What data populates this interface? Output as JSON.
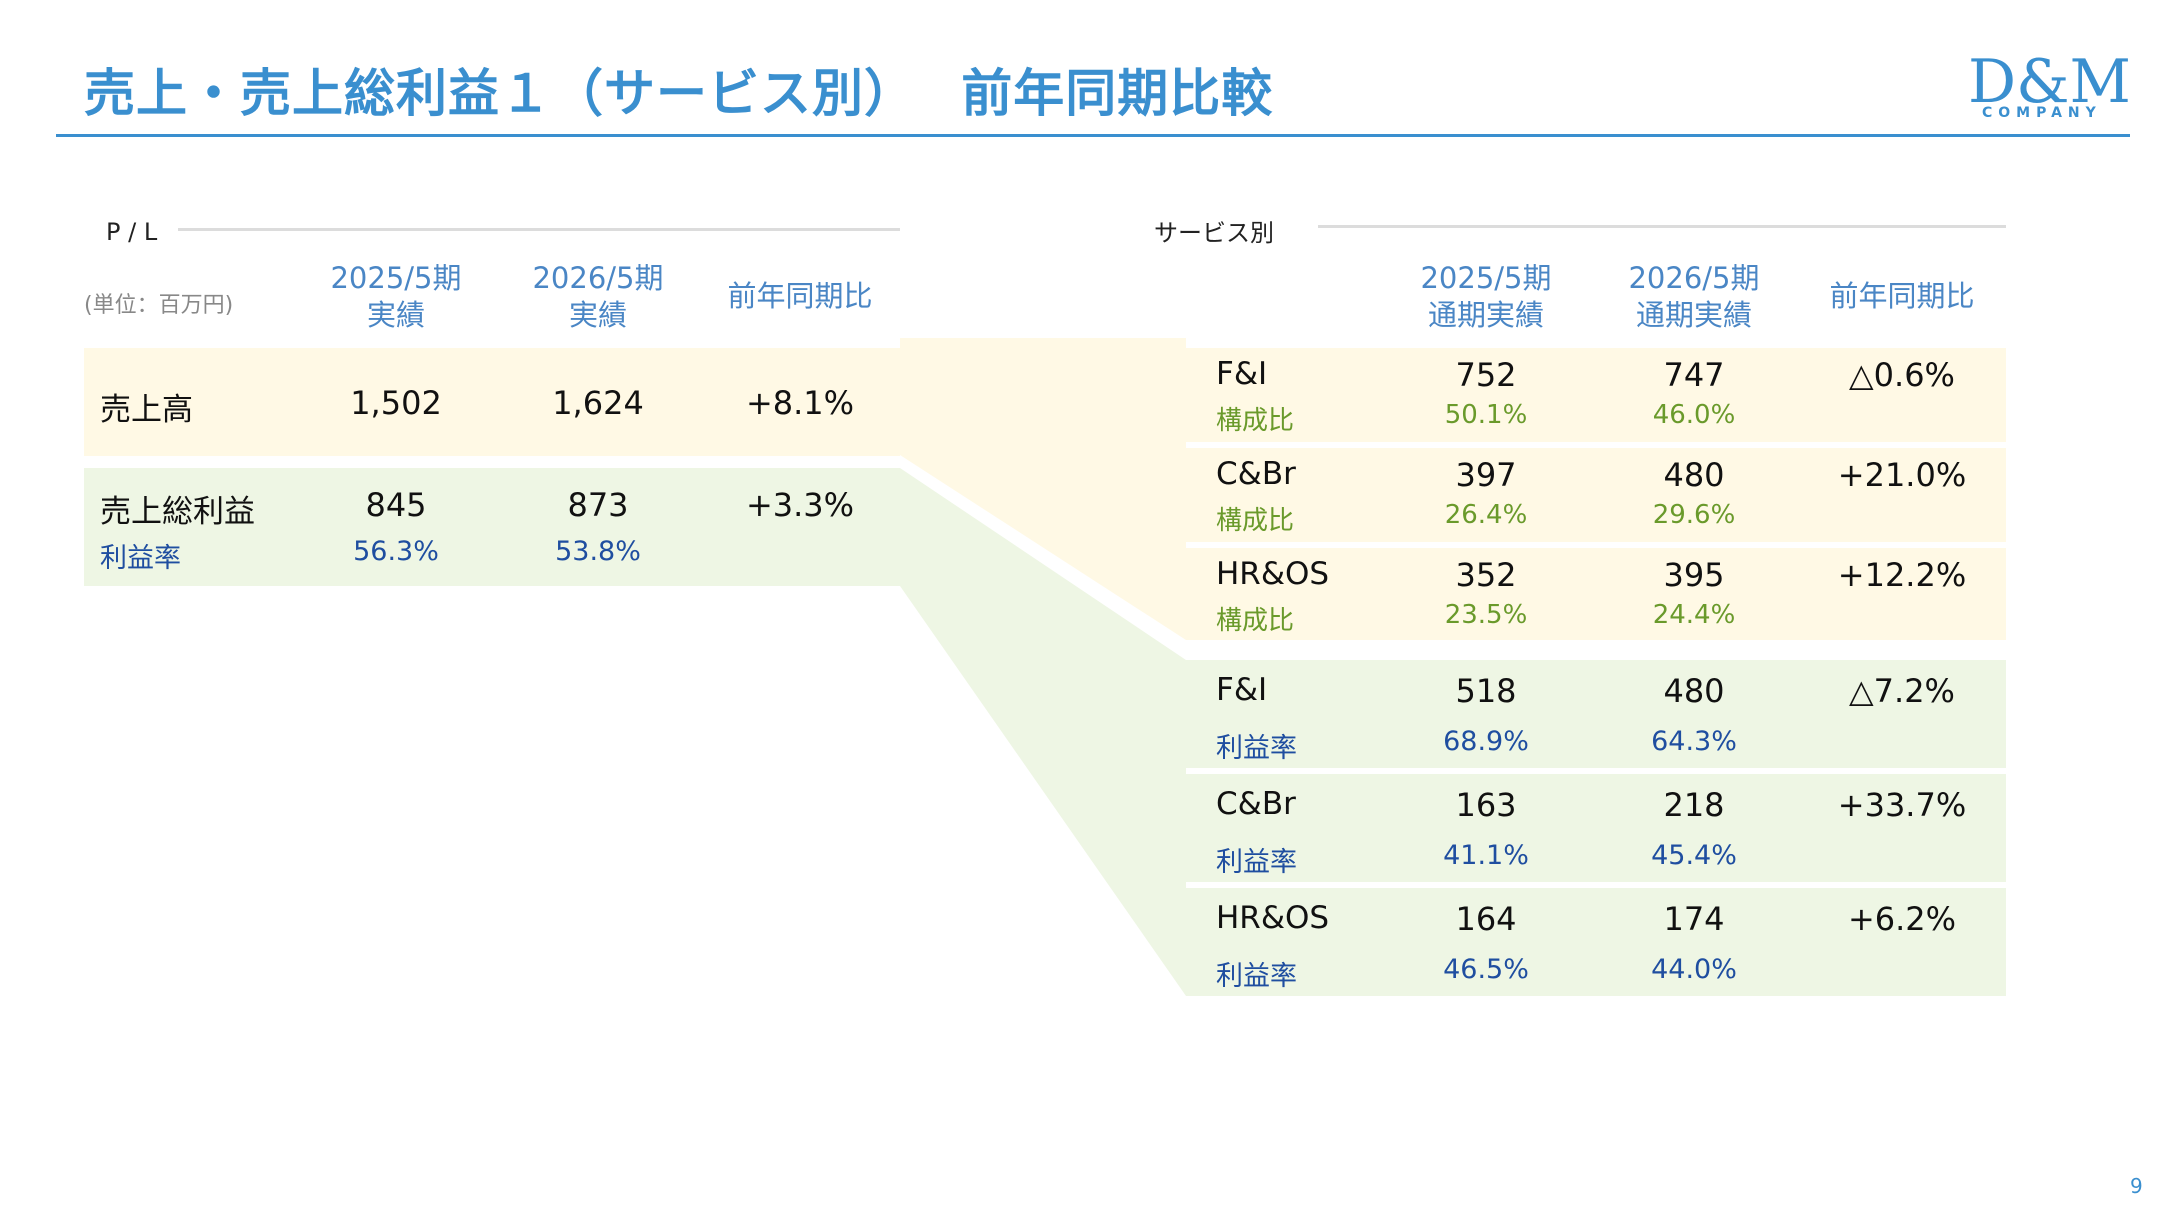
{
  "title": "売上・売上総利益１（サービス別）　 前年同期比較",
  "logo": {
    "main": "D&M",
    "sub": "COMPANY"
  },
  "colors": {
    "accent": "#3a8fcf",
    "revenue_band": "#fff9e5",
    "profit_band": "#eef6e4",
    "ratio_green": "#6a9a2b",
    "ratio_blue": "#1f4ea0"
  },
  "pl": {
    "section_label": "P / L",
    "unit": "(単位：百万円)",
    "headers": [
      {
        "line1": "2025/5期",
        "line2": "実績"
      },
      {
        "line1": "2026/5期",
        "line2": "実績"
      },
      {
        "line1": "前年同期比",
        "line2": ""
      }
    ],
    "sales": {
      "label": "売上高",
      "v2025": "1,502",
      "v2026": "1,624",
      "yoy": "+8.1%"
    },
    "gross": {
      "label": "売上総利益",
      "v2025": "845",
      "v2026": "873",
      "yoy": "+3.3%",
      "ratio_label": "利益率",
      "r2025": "56.3%",
      "r2026": "53.8%"
    }
  },
  "service": {
    "section_label": "サービス別",
    "headers": [
      {
        "line1": "2025/5期",
        "line2": "通期実績"
      },
      {
        "line1": "2026/5期",
        "line2": "通期実績"
      },
      {
        "line1": "前年同期比",
        "line2": ""
      }
    ],
    "sales_rows": [
      {
        "name": "F&I",
        "v2025": "752",
        "v2026": "747",
        "yoy": "△0.6%",
        "ratio_label": "構成比",
        "r2025": "50.1%",
        "r2026": "46.0%"
      },
      {
        "name": "C&Br",
        "v2025": "397",
        "v2026": "480",
        "yoy": "+21.0%",
        "ratio_label": "構成比",
        "r2025": "26.4%",
        "r2026": "29.6%"
      },
      {
        "name": "HR&OS",
        "v2025": "352",
        "v2026": "395",
        "yoy": "+12.2%",
        "ratio_label": "構成比",
        "r2025": "23.5%",
        "r2026": "24.4%"
      }
    ],
    "profit_rows": [
      {
        "name": "F&I",
        "v2025": "518",
        "v2026": "480",
        "yoy": "△7.2%",
        "ratio_label": "利益率",
        "r2025": "68.9%",
        "r2026": "64.3%"
      },
      {
        "name": "C&Br",
        "v2025": "163",
        "v2026": "218",
        "yoy": "+33.7%",
        "ratio_label": "利益率",
        "r2025": "41.1%",
        "r2026": "45.4%"
      },
      {
        "name": "HR&OS",
        "v2025": "164",
        "v2026": "174",
        "yoy": "+6.2%",
        "ratio_label": "利益率",
        "r2025": "46.5%",
        "r2026": "44.0%"
      }
    ]
  },
  "page_number": "9"
}
